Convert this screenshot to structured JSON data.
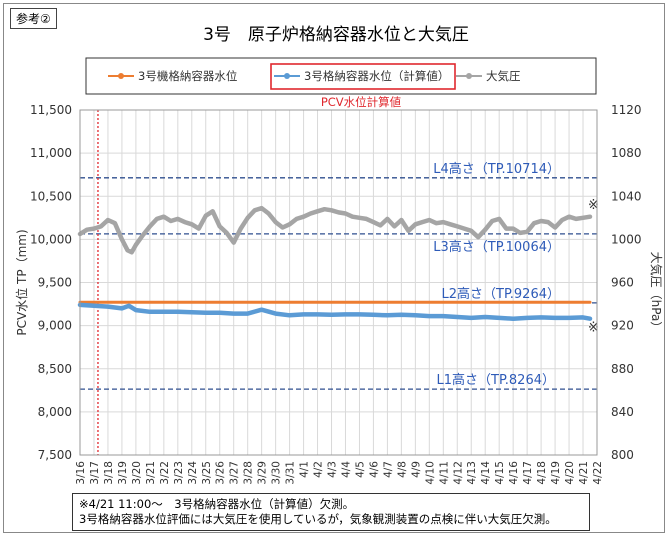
{
  "tag_label": "参考②",
  "chart_data": {
    "type": "line",
    "title": "3号　原子炉格納容器水位と大気圧",
    "subtitle": "PCV水位計算値",
    "ylabel": "PCV水位 TP（mm)",
    "y2label": "大気圧（hPa）",
    "ylim": [
      7500,
      11500
    ],
    "y2lim": [
      800,
      1120
    ],
    "yticks": [
      "7,500",
      "8,000",
      "8,500",
      "9,000",
      "9,500",
      "10,000",
      "10,500",
      "11,000",
      "11,500"
    ],
    "y2ticks": [
      "800",
      "840",
      "880",
      "920",
      "960",
      "1000",
      "1040",
      "1080",
      "1120"
    ],
    "x_start": "3/16",
    "x_end": "4/22",
    "xticks": [
      "3/16",
      "3/17",
      "3/18",
      "3/19",
      "3/20",
      "3/21",
      "3/22",
      "3/23",
      "3/24",
      "3/25",
      "3/26",
      "3/27",
      "3/28",
      "3/29",
      "3/30",
      "3/31",
      "4/1",
      "4/2",
      "4/3",
      "4/4",
      "4/5",
      "4/6",
      "4/7",
      "4/8",
      "4/9",
      "4/10",
      "4/11",
      "4/12",
      "4/13",
      "4/14",
      "4/15",
      "4/16",
      "4/17",
      "4/18",
      "4/19",
      "4/20",
      "4/21",
      "4/22"
    ],
    "legend": [
      "3号機格納容器水位",
      "3号格納容器水位（計算値）",
      "大気圧"
    ],
    "legend_position": "top",
    "grid": true,
    "colors": {
      "orange": "#ED7D31",
      "blue": "#5B9BD5",
      "gray": "#A5A5A5",
      "ref": "#2F4F8F",
      "red": "#E0282E",
      "level_text": "#2E5BB8"
    },
    "reference_lines": [
      {
        "label": "L4高さ（TP.10714）",
        "value": 10714
      },
      {
        "label": "L3高さ（TP.10064）",
        "value": 10064
      },
      {
        "label": "L2高さ（TP.9264）",
        "value": 9264
      },
      {
        "label": "L1高さ（TP.8264）",
        "value": 8264
      }
    ],
    "red_marker_date": "3/17",
    "series": [
      {
        "name": "3号機格納容器水位",
        "axis": "left",
        "x": [
          0,
          36.5
        ],
        "y": [
          9270,
          9270
        ]
      },
      {
        "name": "3号格納容器水位（計算値）",
        "axis": "left",
        "x": [
          0,
          1,
          2,
          3,
          3.5,
          4,
          5,
          6,
          7,
          8,
          9,
          10,
          11,
          12,
          13,
          14,
          15,
          16,
          17,
          18,
          19,
          20,
          21,
          22,
          23,
          24,
          25,
          26,
          27,
          28,
          29,
          30,
          31,
          32,
          33,
          34,
          35,
          36,
          36.5
        ],
        "y": [
          9240,
          9230,
          9220,
          9200,
          9230,
          9180,
          9160,
          9160,
          9160,
          9155,
          9150,
          9150,
          9140,
          9140,
          9185,
          9140,
          9120,
          9130,
          9130,
          9125,
          9130,
          9130,
          9125,
          9120,
          9125,
          9120,
          9110,
          9110,
          9100,
          9090,
          9100,
          9090,
          9080,
          9090,
          9095,
          9090,
          9090,
          9095,
          9080
        ]
      },
      {
        "name": "大気圧",
        "axis": "right",
        "x": [
          0,
          0.5,
          1,
          1.5,
          2,
          2.5,
          3,
          3.4,
          3.7,
          4,
          4.5,
          5,
          5.5,
          6,
          6.5,
          7,
          7.5,
          8,
          8.5,
          9,
          9.5,
          10,
          10.5,
          11,
          11.5,
          12,
          12.5,
          13,
          13.5,
          14,
          14.5,
          15,
          15.5,
          16,
          16.5,
          17,
          17.5,
          18,
          18.5,
          19,
          19.5,
          20,
          20.5,
          21,
          21.5,
          22,
          22.5,
          23,
          23.5,
          24,
          24.5,
          25,
          25.5,
          26,
          26.5,
          27,
          27.5,
          28,
          28.5,
          29,
          29.5,
          30,
          30.5,
          31,
          31.5,
          32,
          32.5,
          33,
          33.5,
          34,
          34.5,
          35,
          35.5,
          36,
          36.5
        ],
        "y": [
          1005,
          1009,
          1010,
          1012,
          1018,
          1015,
          1000,
          990,
          988,
          995,
          1004,
          1012,
          1019,
          1021,
          1017,
          1019,
          1016,
          1014,
          1010,
          1022,
          1026,
          1012,
          1006,
          997,
          1010,
          1020,
          1027,
          1029,
          1024,
          1016,
          1011,
          1014,
          1019,
          1021,
          1024,
          1026,
          1028,
          1027,
          1025,
          1024,
          1021,
          1020,
          1019,
          1016,
          1013,
          1019,
          1012,
          1018,
          1008,
          1014,
          1016,
          1018,
          1015,
          1016,
          1014,
          1012,
          1010,
          1008,
          1002,
          1009,
          1017,
          1019,
          1010,
          1010,
          1006,
          1007,
          1015,
          1017,
          1016,
          1011,
          1018,
          1021,
          1019,
          1020,
          1021
        ]
      }
    ],
    "asterisk": "※"
  },
  "note": {
    "line1": "※4/21 11:00～　3号格納容器水位（計算値）欠測。",
    "line2": "3号格納容器水位評価には大気圧を使用しているが，気象観測装置の点検に伴い大気圧欠測。"
  }
}
